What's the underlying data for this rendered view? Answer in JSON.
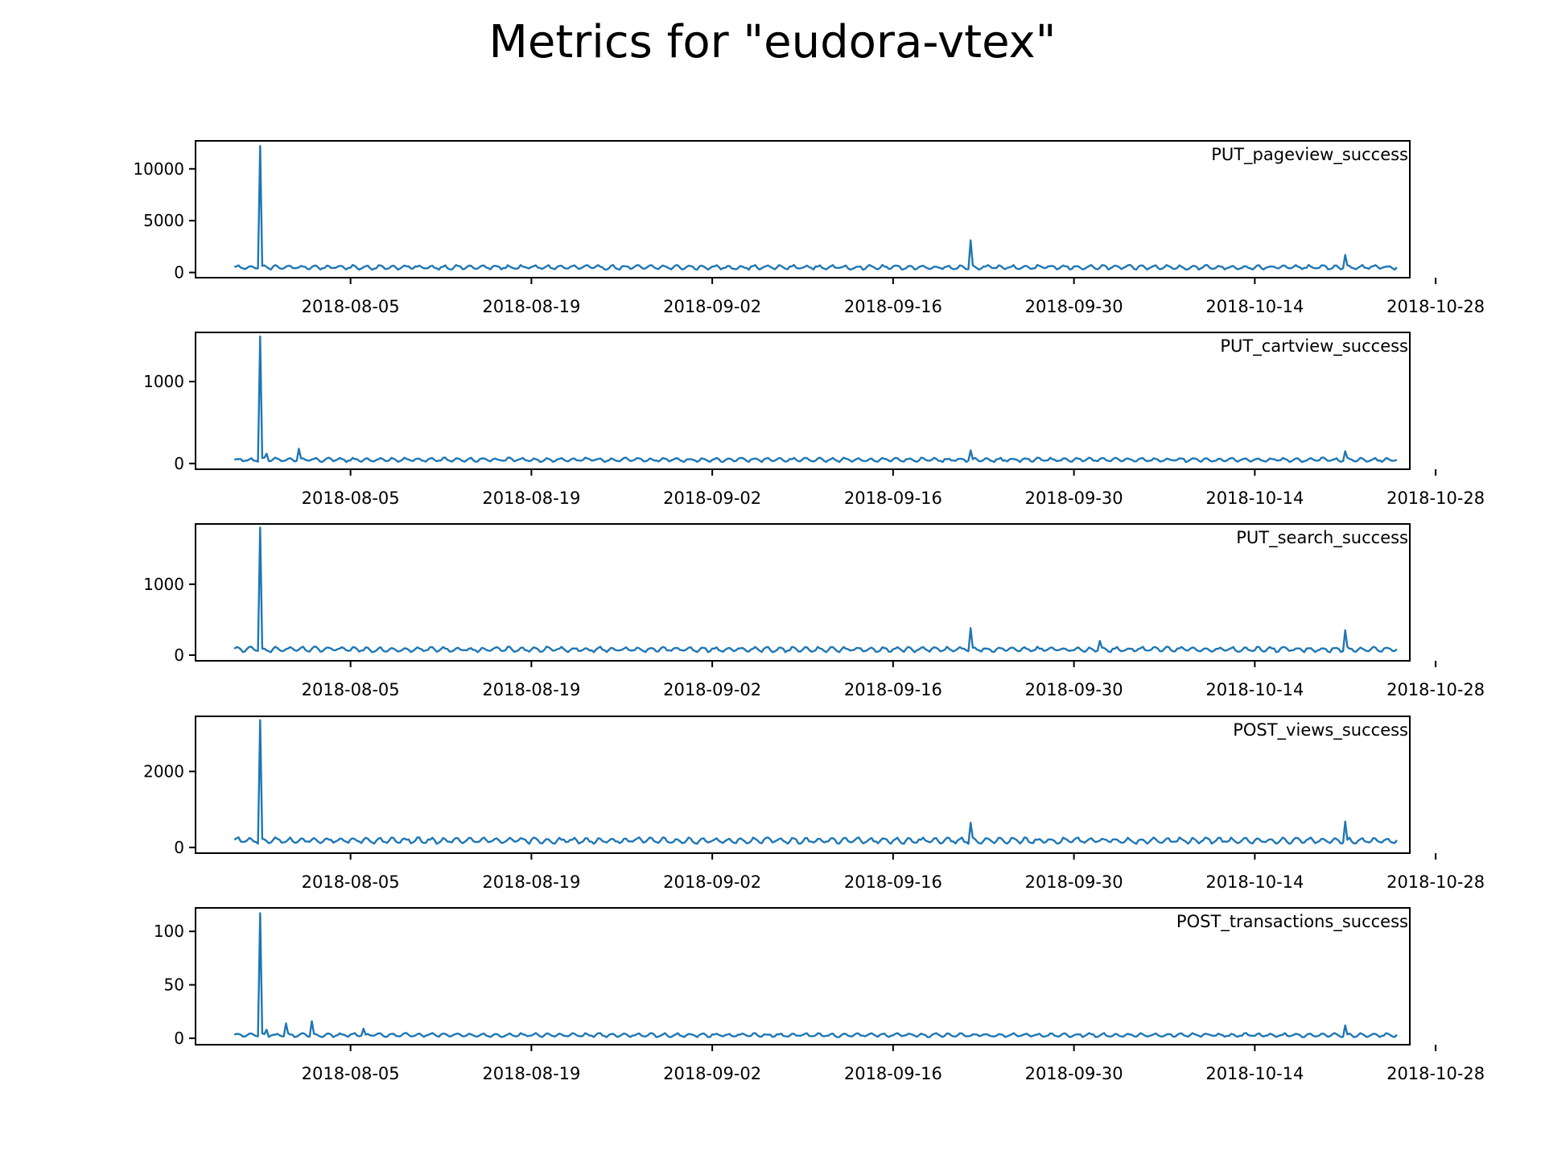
{
  "figure": {
    "title": "Metrics for \"eudora-vtex\""
  },
  "style": {
    "line_color": "#1f77b4",
    "axis_color": "#000000",
    "background": "#ffffff"
  },
  "chart_data": [
    {
      "type": "line",
      "series": [
        {
          "name": "PUT_pageview_success"
        }
      ],
      "label": "PUT_pageview_success",
      "x_range": [
        "2018-07-24",
        "2018-10-26"
      ],
      "ylim": [
        -500,
        12700
      ],
      "yticks": [
        0,
        5000,
        10000
      ],
      "ytick_labels": [
        "0",
        "5000",
        "10000"
      ],
      "xticks": [
        "2018-08-05",
        "2018-08-19",
        "2018-09-02",
        "2018-09-16",
        "2018-09-30",
        "2018-10-14",
        "2018-10-28"
      ],
      "baseline": 500,
      "amplitude": 300,
      "points": [
        {
          "x": "2018-07-27",
          "y": 150
        },
        {
          "x": "2018-07-28",
          "y": 600
        },
        {
          "x": "2018-07-29",
          "y": 12200
        },
        {
          "x": "2018-07-29T12",
          "y": 700
        },
        {
          "x": "2018-08-01",
          "y": 1100
        },
        {
          "x": "2018-08-10",
          "y": 500
        },
        {
          "x": "2018-09-01",
          "y": 300
        },
        {
          "x": "2018-09-10",
          "y": 200
        },
        {
          "x": "2018-09-22",
          "y": 3100
        },
        {
          "x": "2018-09-22T12",
          "y": 300
        },
        {
          "x": "2018-10-14",
          "y": 650
        },
        {
          "x": "2018-10-21",
          "y": 1700
        },
        {
          "x": "2018-10-21T12",
          "y": 500
        },
        {
          "x": "2018-10-25",
          "y": 550
        }
      ]
    },
    {
      "type": "line",
      "series": [
        {
          "name": "PUT_cartview_success"
        }
      ],
      "label": "PUT_cartview_success",
      "x_range": [
        "2018-07-24",
        "2018-10-26"
      ],
      "ylim": [
        -70,
        1600
      ],
      "yticks": [
        0,
        1000
      ],
      "ytick_labels": [
        "0",
        "1000"
      ],
      "xticks": [
        "2018-08-05",
        "2018-08-19",
        "2018-09-02",
        "2018-09-16",
        "2018-09-30",
        "2018-10-14",
        "2018-10-28"
      ],
      "baseline": 45,
      "amplitude": 35,
      "points": [
        {
          "x": "2018-07-27",
          "y": 40
        },
        {
          "x": "2018-07-28",
          "y": 80
        },
        {
          "x": "2018-07-29",
          "y": 1550
        },
        {
          "x": "2018-07-29T12",
          "y": 120
        },
        {
          "x": "2018-08-01",
          "y": 180
        },
        {
          "x": "2018-08-10",
          "y": 60
        },
        {
          "x": "2018-09-01",
          "y": 30
        },
        {
          "x": "2018-09-22",
          "y": 160
        },
        {
          "x": "2018-09-22T12",
          "y": 40
        },
        {
          "x": "2018-10-21",
          "y": 150
        },
        {
          "x": "2018-10-21T12",
          "y": 40
        },
        {
          "x": "2018-10-25",
          "y": 45
        }
      ]
    },
    {
      "type": "line",
      "series": [
        {
          "name": "PUT_search_success"
        }
      ],
      "label": "PUT_search_success",
      "x_range": [
        "2018-07-24",
        "2018-10-26"
      ],
      "ylim": [
        -80,
        1850
      ],
      "yticks": [
        0,
        1000
      ],
      "ytick_labels": [
        "0",
        "1000"
      ],
      "xticks": [
        "2018-08-05",
        "2018-08-19",
        "2018-09-02",
        "2018-09-16",
        "2018-09-30",
        "2018-10-14",
        "2018-10-28"
      ],
      "baseline": 80,
      "amplitude": 50,
      "points": [
        {
          "x": "2018-07-27",
          "y": 60
        },
        {
          "x": "2018-07-28",
          "y": 90
        },
        {
          "x": "2018-07-29",
          "y": 1800
        },
        {
          "x": "2018-07-29T12",
          "y": 120
        },
        {
          "x": "2018-09-05",
          "y": 60
        },
        {
          "x": "2018-09-22",
          "y": 380
        },
        {
          "x": "2018-09-22T12",
          "y": 80
        },
        {
          "x": "2018-10-02",
          "y": 200
        },
        {
          "x": "2018-10-21",
          "y": 350
        },
        {
          "x": "2018-10-21T12",
          "y": 120
        },
        {
          "x": "2018-10-25",
          "y": 110
        }
      ]
    },
    {
      "type": "line",
      "series": [
        {
          "name": "POST_views_success"
        }
      ],
      "label": "POST_views_success",
      "x_range": [
        "2018-07-24",
        "2018-10-26"
      ],
      "ylim": [
        -150,
        3450
      ],
      "yticks": [
        0,
        2000
      ],
      "ytick_labels": [
        "0",
        "2000"
      ],
      "xticks": [
        "2018-08-05",
        "2018-08-19",
        "2018-09-02",
        "2018-09-16",
        "2018-09-30",
        "2018-10-14",
        "2018-10-28"
      ],
      "baseline": 180,
      "amplitude": 110,
      "points": [
        {
          "x": "2018-07-27",
          "y": 150
        },
        {
          "x": "2018-07-28",
          "y": 250
        },
        {
          "x": "2018-07-29",
          "y": 3350
        },
        {
          "x": "2018-07-29T12",
          "y": 280
        },
        {
          "x": "2018-08-01",
          "y": 380
        },
        {
          "x": "2018-09-05",
          "y": 90
        },
        {
          "x": "2018-09-22",
          "y": 650
        },
        {
          "x": "2018-09-22T12",
          "y": 150
        },
        {
          "x": "2018-10-15",
          "y": 350
        },
        {
          "x": "2018-10-21",
          "y": 680
        },
        {
          "x": "2018-10-21T12",
          "y": 200
        },
        {
          "x": "2018-10-25",
          "y": 200
        }
      ]
    },
    {
      "type": "line",
      "series": [
        {
          "name": "POST_transactions_success"
        }
      ],
      "label": "POST_transactions_success",
      "x_range": [
        "2018-07-24",
        "2018-10-26"
      ],
      "ylim": [
        -6,
        122
      ],
      "yticks": [
        0,
        50,
        100
      ],
      "ytick_labels": [
        "0",
        "50",
        "100"
      ],
      "xticks": [
        "2018-08-05",
        "2018-08-19",
        "2018-09-02",
        "2018-09-16",
        "2018-09-30",
        "2018-10-14",
        "2018-10-28"
      ],
      "baseline": 3,
      "amplitude": 2.5,
      "points": [
        {
          "x": "2018-07-27",
          "y": 3
        },
        {
          "x": "2018-07-28",
          "y": 6
        },
        {
          "x": "2018-07-29",
          "y": 117
        },
        {
          "x": "2018-07-29T12",
          "y": 8
        },
        {
          "x": "2018-07-31",
          "y": 14
        },
        {
          "x": "2018-08-02",
          "y": 16
        },
        {
          "x": "2018-08-06",
          "y": 9
        },
        {
          "x": "2018-09-22",
          "y": 5
        },
        {
          "x": "2018-10-21",
          "y": 12
        },
        {
          "x": "2018-10-21T12",
          "y": 3
        },
        {
          "x": "2018-10-25",
          "y": 3
        }
      ]
    }
  ]
}
